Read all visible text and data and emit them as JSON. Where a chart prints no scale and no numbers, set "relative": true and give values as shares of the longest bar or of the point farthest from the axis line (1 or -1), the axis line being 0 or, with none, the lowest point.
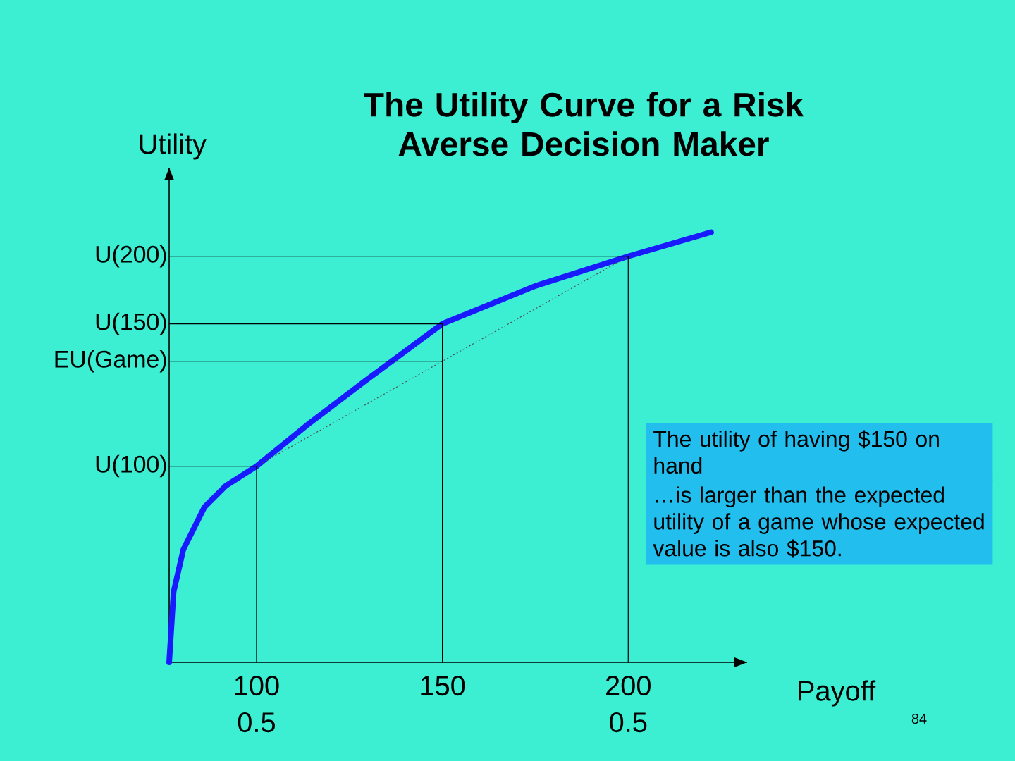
{
  "chart_data": {
    "type": "line",
    "title": "The Utility Curve for a Risk Averse Decision Maker",
    "xlabel": "Payoff",
    "ylabel": "Utility",
    "relative": true,
    "tick_labels": "x",
    "xlim": [
      76.5,
      232
    ],
    "xticks": [
      100,
      150,
      200
    ],
    "marker": "none",
    "series": [
      {
        "color": "#1a1aff",
        "line_style": "solid",
        "x": [
          76.5,
          77.7,
          80.3,
          86.0,
          91.7,
          100,
          114.4,
          129.5,
          150,
          175,
          200,
          222.3
        ],
        "values": [
          0,
          0.164,
          0.262,
          0.361,
          0.41,
          0.456,
          0.557,
          0.656,
          0.787,
          0.875,
          0.944,
          1
        ]
      },
      {
        "color": "#505050",
        "line_style": "dotted",
        "x": [
          100,
          200
        ],
        "values": [
          0.456,
          0.944
        ]
      },
      {
        "color": "#000000",
        "line_style": "solid",
        "x": [
          76.5,
          200,
          200
        ],
        "values": [
          0.944,
          0.944,
          0
        ]
      },
      {
        "color": "#000000",
        "line_style": "solid",
        "x": [
          76.5,
          150,
          150
        ],
        "values": [
          0.787,
          0.787,
          0
        ]
      },
      {
        "color": "#000000",
        "line_style": "solid",
        "x": [
          76.5,
          150
        ],
        "values": [
          0.7,
          0.7
        ]
      },
      {
        "color": "#000000",
        "line_style": "solid",
        "x": [
          76.5,
          100,
          100
        ],
        "values": [
          0.456,
          0.456,
          0
        ]
      }
    ],
    "annotations": [
      "The utility of having $150 on hand",
      "…is larger than the expected utility of a game whose expected value is also $150.",
      "84",
      "U(200)",
      "U(150)",
      "EU(Game)",
      "U(100)",
      "0.5",
      "0.5"
    ]
  }
}
